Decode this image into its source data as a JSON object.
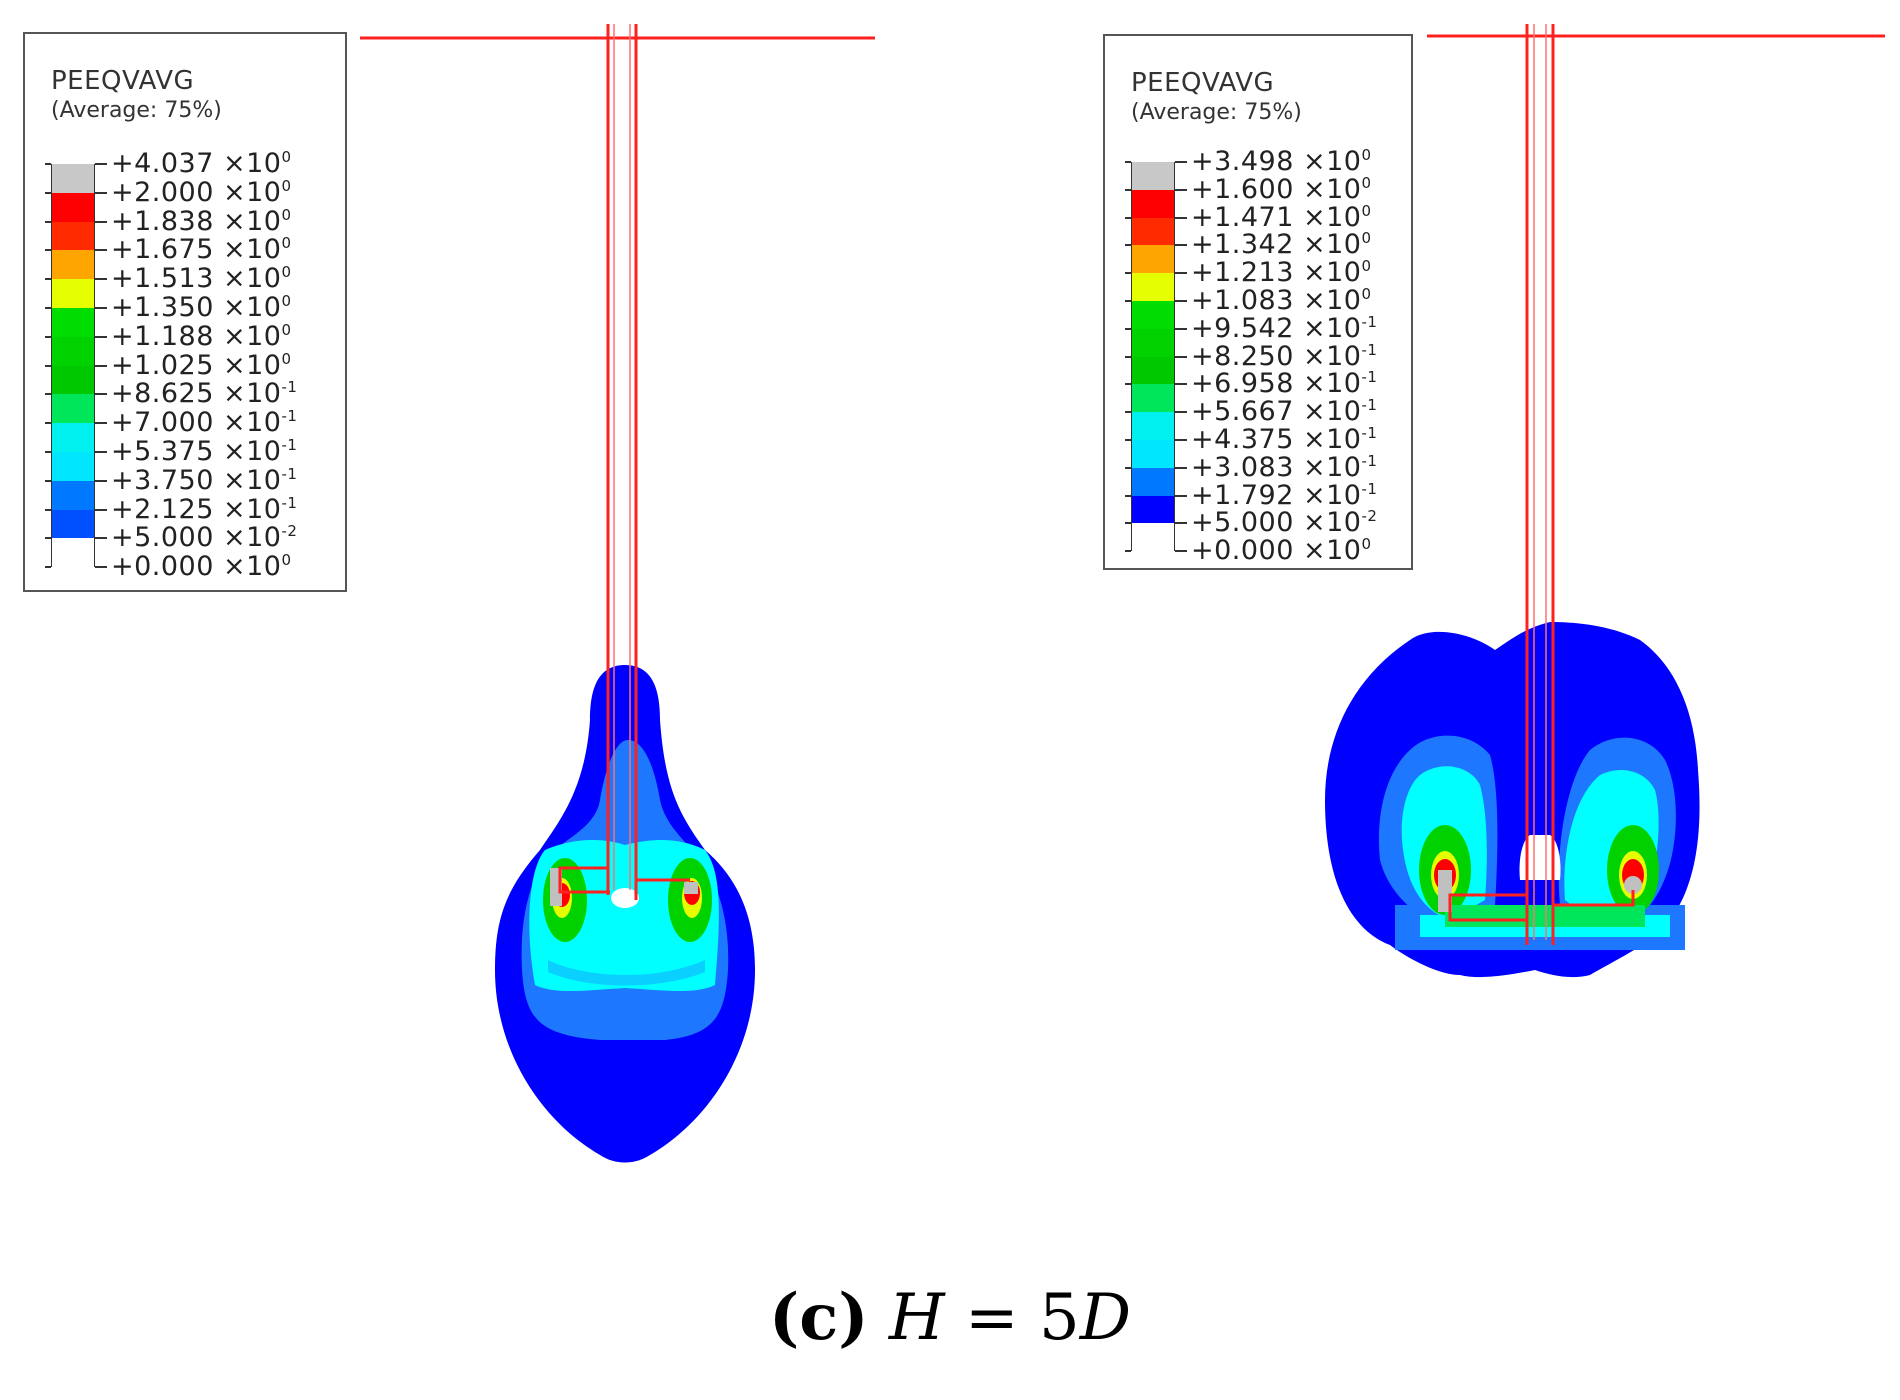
{
  "panels": [
    {
      "id": "left",
      "legend": {
        "title": "PEEQVAVG",
        "subtitle": "(Average: 75%)",
        "entries": [
          {
            "mantissa": "+4.037",
            "exp": "0"
          },
          {
            "mantissa": "+2.000",
            "exp": "0"
          },
          {
            "mantissa": "+1.838",
            "exp": "0"
          },
          {
            "mantissa": "+1.675",
            "exp": "0"
          },
          {
            "mantissa": "+1.513",
            "exp": "0"
          },
          {
            "mantissa": "+1.350",
            "exp": "0"
          },
          {
            "mantissa": "+1.188",
            "exp": "0"
          },
          {
            "mantissa": "+1.025",
            "exp": "0"
          },
          {
            "mantissa": "+8.625",
            "exp": "-1"
          },
          {
            "mantissa": "+7.000",
            "exp": "-1"
          },
          {
            "mantissa": "+5.375",
            "exp": "-1"
          },
          {
            "mantissa": "+3.750",
            "exp": "-1"
          },
          {
            "mantissa": "+2.125",
            "exp": "-1"
          },
          {
            "mantissa": "+5.000",
            "exp": "-2"
          },
          {
            "mantissa": "+0.000",
            "exp": "0"
          }
        ],
        "band_colors": [
          "#c8c8c8",
          "#ff0000",
          "#ff2a00",
          "#ffa500",
          "#e6ff00",
          "#00dd00",
          "#00d200",
          "#00c800",
          "#00e65a",
          "#00f0f0",
          "#00e6ff",
          "#0078ff",
          "#0050ff",
          "#ffffff"
        ]
      }
    },
    {
      "id": "right",
      "legend": {
        "title": "PEEQVAVG",
        "subtitle": "(Average: 75%)",
        "entries": [
          {
            "mantissa": "+3.498",
            "exp": "0"
          },
          {
            "mantissa": "+1.600",
            "exp": "0"
          },
          {
            "mantissa": "+1.471",
            "exp": "0"
          },
          {
            "mantissa": "+1.342",
            "exp": "0"
          },
          {
            "mantissa": "+1.213",
            "exp": "0"
          },
          {
            "mantissa": "+1.083",
            "exp": "0"
          },
          {
            "mantissa": "+9.542",
            "exp": "-1"
          },
          {
            "mantissa": "+8.250",
            "exp": "-1"
          },
          {
            "mantissa": "+6.958",
            "exp": "-1"
          },
          {
            "mantissa": "+5.667",
            "exp": "-1"
          },
          {
            "mantissa": "+4.375",
            "exp": "-1"
          },
          {
            "mantissa": "+3.083",
            "exp": "-1"
          },
          {
            "mantissa": "+1.792",
            "exp": "-1"
          },
          {
            "mantissa": "+5.000",
            "exp": "-2"
          },
          {
            "mantissa": "+0.000",
            "exp": "0"
          }
        ],
        "band_colors": [
          "#c8c8c8",
          "#ff0000",
          "#ff2a00",
          "#ffa500",
          "#e6ff00",
          "#00dd00",
          "#00d200",
          "#00c800",
          "#00e65a",
          "#00f0f0",
          "#00e6ff",
          "#0078ff",
          "#0000ff",
          "#ffffff"
        ]
      }
    }
  ],
  "colors": {
    "dark_blue": "#0000ff",
    "mid_blue": "#1e78ff",
    "cyan": "#00ffff",
    "green": "#00d200",
    "yellow": "#e6ff00",
    "red": "#ff0000",
    "gray": "#c0c0c0",
    "outline": "#ff2020"
  },
  "caption": {
    "label": "(c)",
    "variable": "H",
    "equals": " = 5",
    "unit": "D"
  }
}
